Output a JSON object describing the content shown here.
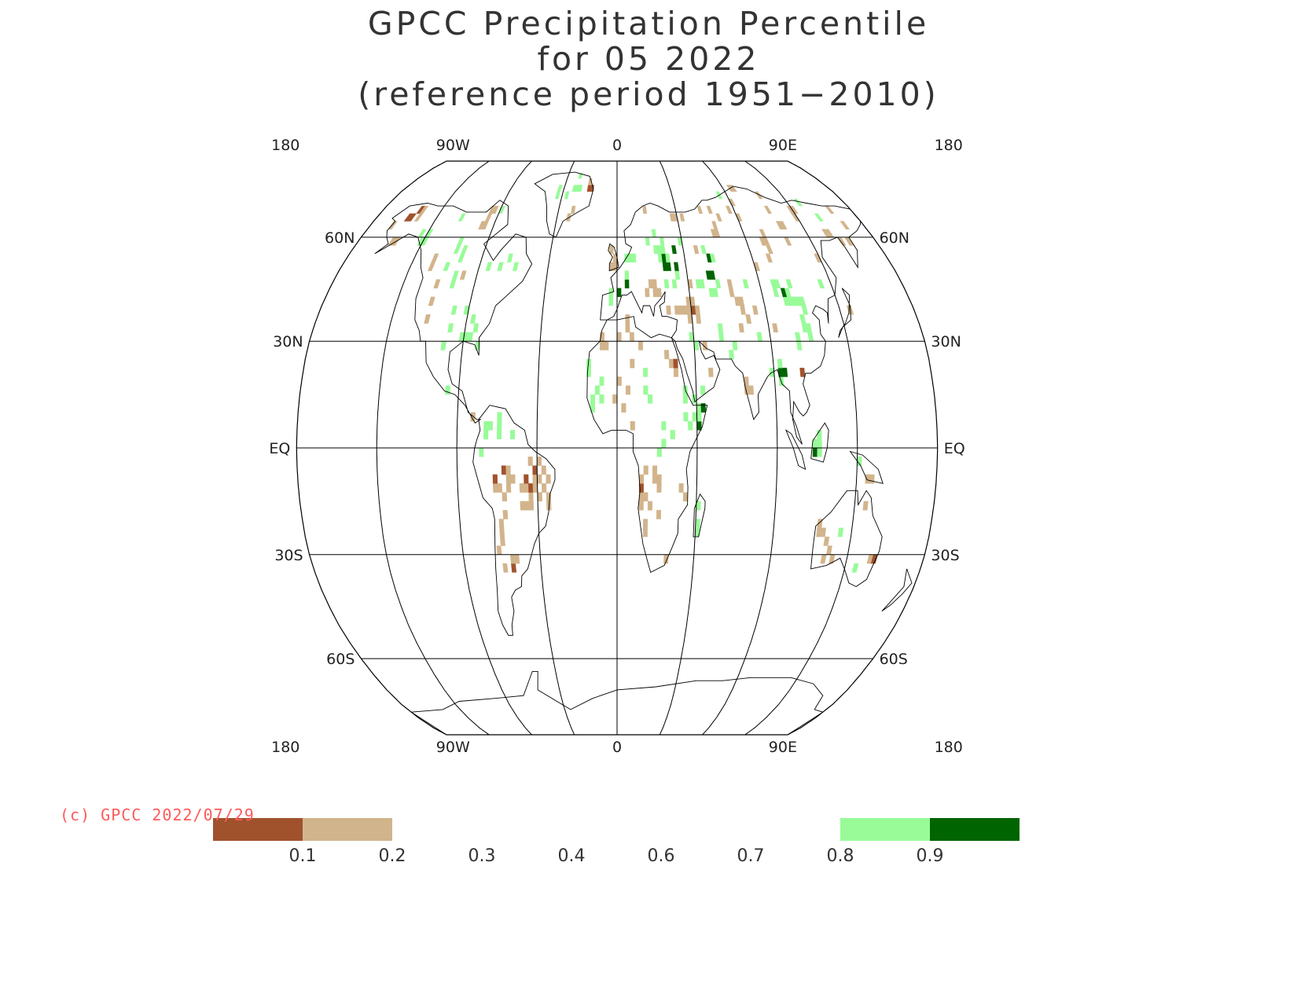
{
  "title": {
    "line1": "GPCC Precipitation Percentile",
    "line2": "for 05 2022",
    "line3": "(reference period 1951−2010)"
  },
  "map": {
    "projection": "robinson",
    "lon_labels_top": [
      "180",
      "90W",
      "0",
      "90E",
      "180"
    ],
    "lon_labels_bottom": [
      "180",
      "90W",
      "0",
      "90E",
      "180"
    ],
    "lat_labels": [
      {
        "text": "60N",
        "lat": 60
      },
      {
        "text": "30N",
        "lat": 30
      },
      {
        "text": "EQ",
        "lat": 0
      },
      {
        "text": "30S",
        "lat": -30
      },
      {
        "text": "60S",
        "lat": -60
      }
    ],
    "colors": {
      "very_dry": "#a0522d",
      "dry": "#d2b48c",
      "wet": "#98fb98",
      "very_wet": "#006400",
      "grid": "#000000",
      "coast": "#000000"
    }
  },
  "copyright": "(c) GPCC 2022/07/29",
  "legend": {
    "labels": [
      "0.1",
      "0.2",
      "0.3",
      "0.4",
      "0.6",
      "0.7",
      "0.8",
      "0.9"
    ],
    "bins": [
      {
        "range": [
          0,
          0.1
        ],
        "color": "#a0522d"
      },
      {
        "range": [
          0.1,
          0.2
        ],
        "color": "#d2b48c"
      },
      {
        "range": [
          0.2,
          0.3
        ],
        "color": "#ffffff"
      },
      {
        "range": [
          0.3,
          0.4
        ],
        "color": "#ffffff"
      },
      {
        "range": [
          0.4,
          0.6
        ],
        "color": "#ffffff"
      },
      {
        "range": [
          0.6,
          0.7
        ],
        "color": "#ffffff"
      },
      {
        "range": [
          0.7,
          0.8
        ],
        "color": "#ffffff"
      },
      {
        "range": [
          0.8,
          0.9
        ],
        "color": "#98fb98"
      },
      {
        "range": [
          0.9,
          1.0
        ],
        "color": "#006400"
      }
    ]
  }
}
